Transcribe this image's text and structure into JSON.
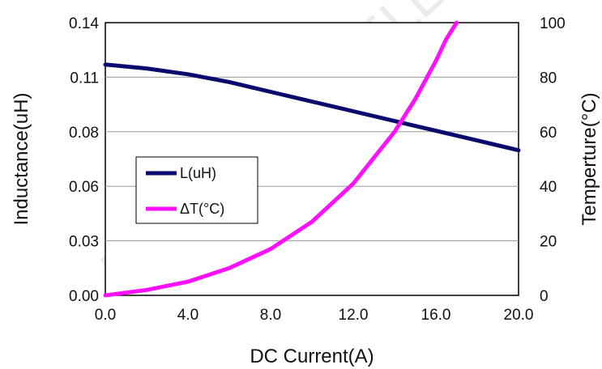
{
  "chart_data": {
    "type": "line",
    "xlabel": "DC Current(A)",
    "ylabel_left": "Inductance(uH)",
    "ylabel_right": "Temperture(°C)",
    "x_ticks": [
      "0.0",
      "4.0",
      "8.0",
      "12.0",
      "16.0",
      "20.0"
    ],
    "y_left_ticks": [
      "0.00",
      "0.03",
      "0.06",
      "0.08",
      "0.11",
      "0.14"
    ],
    "y_right_ticks": [
      "0",
      "20",
      "40",
      "60",
      "80",
      "100"
    ],
    "xlim": [
      0,
      20
    ],
    "ylim_left": [
      0,
      0.14
    ],
    "ylim_right": [
      0,
      100
    ],
    "grid": true,
    "legend_position": "center-left",
    "series": [
      {
        "name": "L(uH)",
        "axis": "left",
        "color": "#0a0a6e",
        "x": [
          0,
          2,
          4,
          6,
          8,
          10,
          12,
          14,
          16,
          18,
          20
        ],
        "y": [
          0.1185,
          0.1165,
          0.1135,
          0.1095,
          0.1045,
          0.0995,
          0.0945,
          0.0895,
          0.0845,
          0.0795,
          0.0745
        ]
      },
      {
        "name": "ΔT(°C)",
        "axis": "right",
        "color": "#ff10ff",
        "x": [
          0,
          2,
          4,
          6,
          8,
          10,
          12,
          14,
          15,
          16,
          16.5,
          17
        ],
        "y": [
          0,
          2,
          5,
          10,
          17,
          27,
          41,
          60,
          72,
          86,
          94,
          100
        ]
      }
    ],
    "watermark": "FANGCHENG ELECTRONICS 方成电子"
  }
}
